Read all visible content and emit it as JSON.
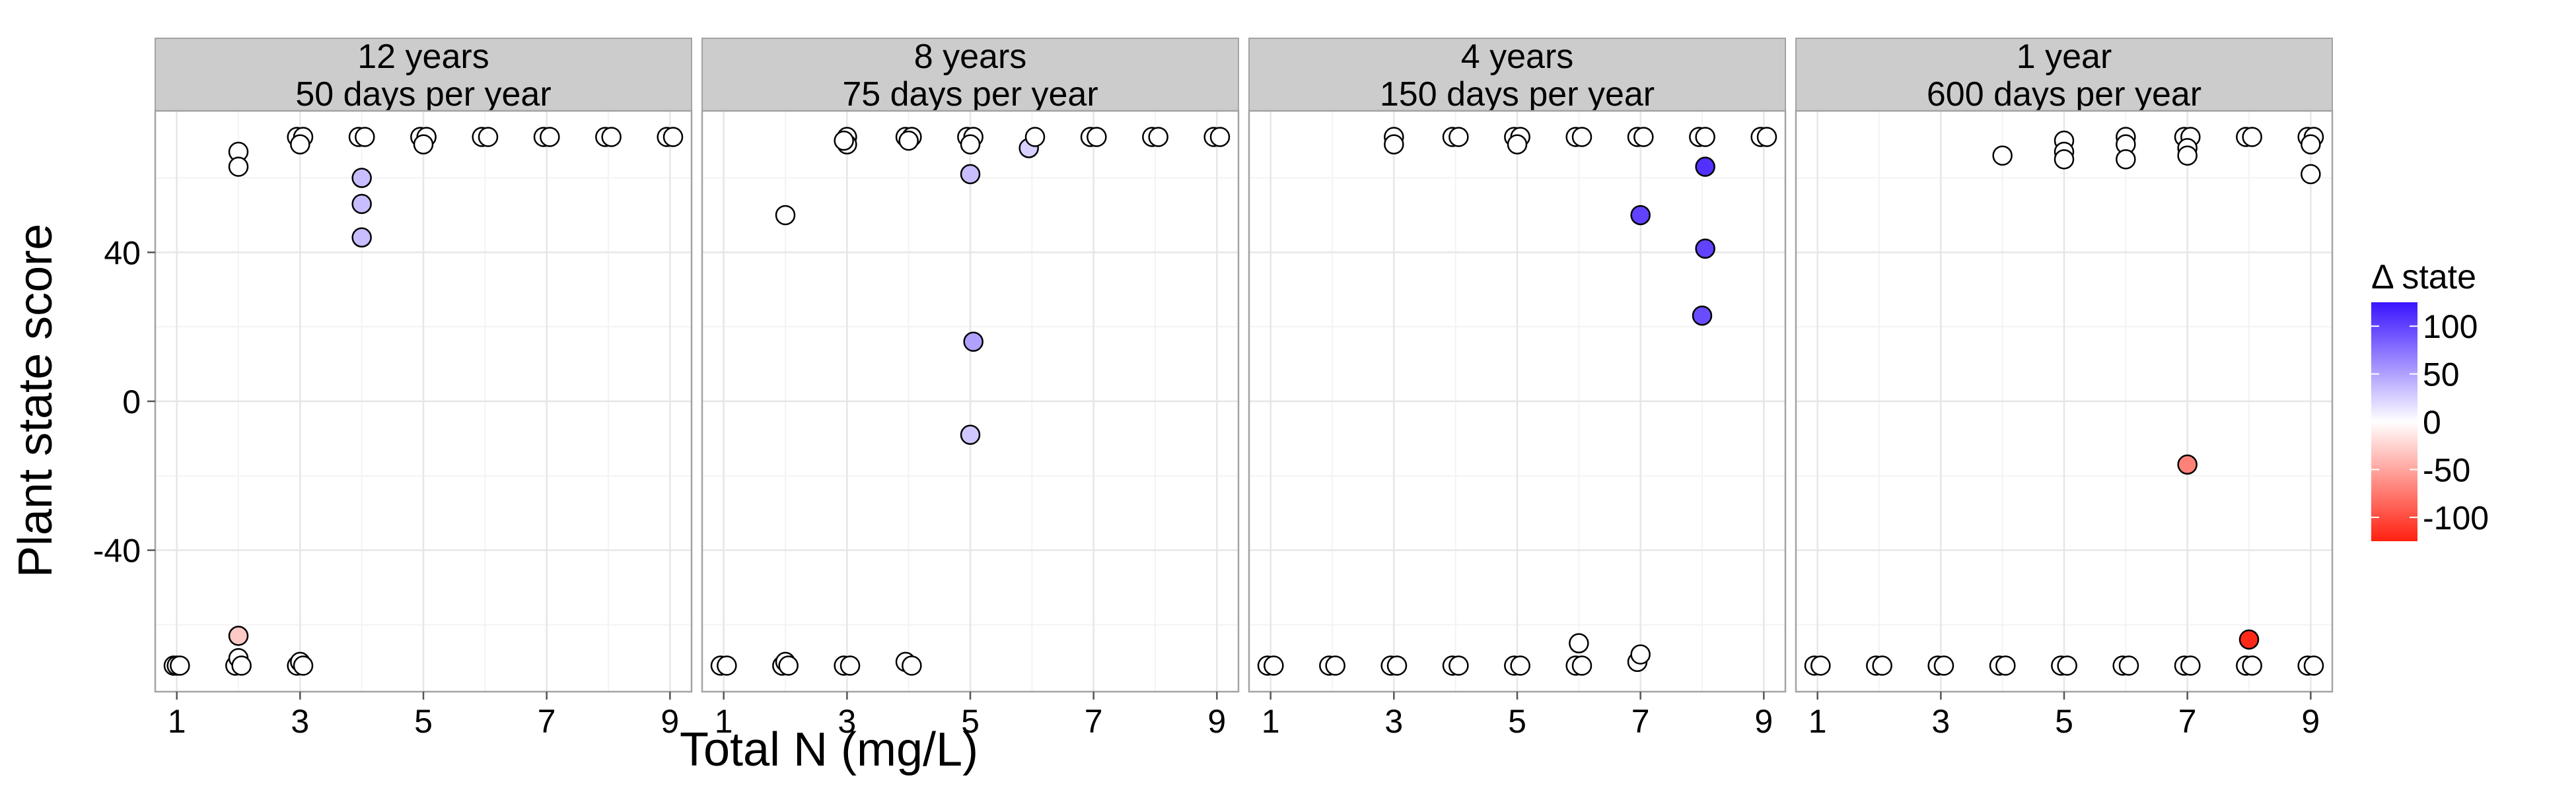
{
  "chart_data": {
    "type": "scatter",
    "xlabel": "Total N (mg/L)",
    "ylabel": "Plant state score",
    "xlim": [
      0.65,
      9.35
    ],
    "ylim": [
      -78,
      78
    ],
    "xticks": [
      1,
      3,
      5,
      7,
      9
    ],
    "xtick_labels": [
      "1",
      "3",
      "5",
      "7",
      "9"
    ],
    "yticks": [
      -40,
      0,
      40
    ],
    "ytick_labels": [
      "-40",
      "0",
      "40"
    ],
    "grid": true,
    "legend": {
      "title": "Δ state",
      "type": "color-gradient",
      "position": "right",
      "low_color": "#ff2010",
      "mid_color": "#ffffff",
      "high_color": "#3a14ff",
      "range": [
        -125,
        125
      ],
      "ticks": [
        100,
        50,
        0,
        -50,
        -100
      ],
      "tick_labels": [
        "100",
        "50",
        "0",
        "-50",
        "-100"
      ]
    },
    "panels": [
      {
        "label_line1": "12 years",
        "label_line2": "50 days per year",
        "points": [
          {
            "x": 0.95,
            "y": -71,
            "d": 0
          },
          {
            "x": 1.0,
            "y": -71,
            "d": 0
          },
          {
            "x": 1.05,
            "y": -71,
            "d": 0
          },
          {
            "x": 1.95,
            "y": -71,
            "d": 0
          },
          {
            "x": 2.0,
            "y": -69,
            "d": 0
          },
          {
            "x": 2.05,
            "y": -71,
            "d": 0
          },
          {
            "x": 2.0,
            "y": -63,
            "d": -30
          },
          {
            "x": 2.0,
            "y": 67,
            "d": 0
          },
          {
            "x": 2.0,
            "y": 63,
            "d": 0
          },
          {
            "x": 2.95,
            "y": -71,
            "d": 0
          },
          {
            "x": 3.0,
            "y": -70,
            "d": 0
          },
          {
            "x": 3.05,
            "y": -71,
            "d": 0
          },
          {
            "x": 2.95,
            "y": 71,
            "d": 0
          },
          {
            "x": 3.05,
            "y": 71,
            "d": 0
          },
          {
            "x": 3.0,
            "y": 69,
            "d": 0
          },
          {
            "x": 3.95,
            "y": 71,
            "d": 0
          },
          {
            "x": 4.05,
            "y": 71,
            "d": 0
          },
          {
            "x": 4.0,
            "y": 60,
            "d": 35
          },
          {
            "x": 4.0,
            "y": 53,
            "d": 35
          },
          {
            "x": 4.0,
            "y": 44,
            "d": 35
          },
          {
            "x": 4.95,
            "y": 71,
            "d": 0
          },
          {
            "x": 5.05,
            "y": 71,
            "d": 0
          },
          {
            "x": 5.0,
            "y": 69,
            "d": 0
          },
          {
            "x": 5.95,
            "y": 71,
            "d": 0
          },
          {
            "x": 6.05,
            "y": 71,
            "d": 0
          },
          {
            "x": 6.95,
            "y": 71,
            "d": 0
          },
          {
            "x": 7.05,
            "y": 71,
            "d": 0
          },
          {
            "x": 7.95,
            "y": 71,
            "d": 0
          },
          {
            "x": 8.05,
            "y": 71,
            "d": 0
          },
          {
            "x": 8.95,
            "y": 71,
            "d": 0
          },
          {
            "x": 9.05,
            "y": 71,
            "d": 0
          }
        ]
      },
      {
        "label_line1": "8 years",
        "label_line2": "75 days per year",
        "points": [
          {
            "x": 0.95,
            "y": -71,
            "d": 0
          },
          {
            "x": 1.05,
            "y": -71,
            "d": 0
          },
          {
            "x": 1.95,
            "y": -71,
            "d": 0
          },
          {
            "x": 2.0,
            "y": -70,
            "d": 0
          },
          {
            "x": 2.05,
            "y": -71,
            "d": 0
          },
          {
            "x": 2.0,
            "y": 50,
            "d": 0
          },
          {
            "x": 2.95,
            "y": -71,
            "d": 0
          },
          {
            "x": 3.05,
            "y": -71,
            "d": 0
          },
          {
            "x": 3.0,
            "y": 71,
            "d": 0
          },
          {
            "x": 3.0,
            "y": 69,
            "d": 0
          },
          {
            "x": 2.95,
            "y": 70,
            "d": 0
          },
          {
            "x": 3.95,
            "y": -70,
            "d": 0
          },
          {
            "x": 4.05,
            "y": -71,
            "d": 0
          },
          {
            "x": 3.95,
            "y": 71,
            "d": 0
          },
          {
            "x": 4.05,
            "y": 71,
            "d": 0
          },
          {
            "x": 4.0,
            "y": 70,
            "d": 0
          },
          {
            "x": 4.95,
            "y": 71,
            "d": 0
          },
          {
            "x": 5.05,
            "y": 71,
            "d": 0
          },
          {
            "x": 5.0,
            "y": 69,
            "d": 0
          },
          {
            "x": 5.0,
            "y": 61,
            "d": 35
          },
          {
            "x": 5.05,
            "y": 16,
            "d": 50
          },
          {
            "x": 5.0,
            "y": -9,
            "d": 30
          },
          {
            "x": 5.95,
            "y": 68,
            "d": 25
          },
          {
            "x": 6.05,
            "y": 71,
            "d": 0
          },
          {
            "x": 6.95,
            "y": 71,
            "d": 0
          },
          {
            "x": 7.05,
            "y": 71,
            "d": 0
          },
          {
            "x": 7.95,
            "y": 71,
            "d": 0
          },
          {
            "x": 8.05,
            "y": 71,
            "d": 0
          },
          {
            "x": 8.95,
            "y": 71,
            "d": 0
          },
          {
            "x": 9.05,
            "y": 71,
            "d": 0
          }
        ]
      },
      {
        "label_line1": "4 years",
        "label_line2": "150 days per year",
        "points": [
          {
            "x": 0.95,
            "y": -71,
            "d": 0
          },
          {
            "x": 1.05,
            "y": -71,
            "d": 0
          },
          {
            "x": 1.95,
            "y": -71,
            "d": 0
          },
          {
            "x": 2.05,
            "y": -71,
            "d": 0
          },
          {
            "x": 2.95,
            "y": -71,
            "d": 0
          },
          {
            "x": 3.05,
            "y": -71,
            "d": 0
          },
          {
            "x": 3.0,
            "y": 71,
            "d": 0
          },
          {
            "x": 3.0,
            "y": 69,
            "d": 0
          },
          {
            "x": 3.95,
            "y": -71,
            "d": 0
          },
          {
            "x": 4.05,
            "y": -71,
            "d": 0
          },
          {
            "x": 3.95,
            "y": 71,
            "d": 0
          },
          {
            "x": 4.05,
            "y": 71,
            "d": 0
          },
          {
            "x": 4.95,
            "y": -71,
            "d": 0
          },
          {
            "x": 5.05,
            "y": -71,
            "d": 0
          },
          {
            "x": 4.95,
            "y": 71,
            "d": 0
          },
          {
            "x": 5.05,
            "y": 71,
            "d": 0
          },
          {
            "x": 5.0,
            "y": 69,
            "d": 0
          },
          {
            "x": 5.95,
            "y": -71,
            "d": 0
          },
          {
            "x": 6.05,
            "y": -71,
            "d": 0
          },
          {
            "x": 6.0,
            "y": -65,
            "d": 0
          },
          {
            "x": 5.95,
            "y": 71,
            "d": 0
          },
          {
            "x": 6.05,
            "y": 71,
            "d": 0
          },
          {
            "x": 6.95,
            "y": -70,
            "d": 0
          },
          {
            "x": 7.0,
            "y": -68,
            "d": 0
          },
          {
            "x": 6.95,
            "y": 71,
            "d": 0
          },
          {
            "x": 7.05,
            "y": 71,
            "d": 0
          },
          {
            "x": 7.0,
            "y": 50,
            "d": 100
          },
          {
            "x": 7.95,
            "y": 71,
            "d": 0
          },
          {
            "x": 8.05,
            "y": 71,
            "d": 0
          },
          {
            "x": 8.05,
            "y": 63,
            "d": 110
          },
          {
            "x": 8.05,
            "y": 41,
            "d": 100
          },
          {
            "x": 8.0,
            "y": 23,
            "d": 95
          },
          {
            "x": 8.95,
            "y": 71,
            "d": 0
          },
          {
            "x": 9.05,
            "y": 71,
            "d": 0
          }
        ]
      },
      {
        "label_line1": "1 year",
        "label_line2": "600 days per year",
        "points": [
          {
            "x": 0.95,
            "y": -71,
            "d": 0
          },
          {
            "x": 1.05,
            "y": -71,
            "d": 0
          },
          {
            "x": 1.95,
            "y": -71,
            "d": 0
          },
          {
            "x": 2.05,
            "y": -71,
            "d": 0
          },
          {
            "x": 2.95,
            "y": -71,
            "d": 0
          },
          {
            "x": 3.05,
            "y": -71,
            "d": 0
          },
          {
            "x": 3.95,
            "y": -71,
            "d": 0
          },
          {
            "x": 4.05,
            "y": -71,
            "d": 0
          },
          {
            "x": 4.0,
            "y": 66,
            "d": 0
          },
          {
            "x": 4.95,
            "y": -71,
            "d": 0
          },
          {
            "x": 5.05,
            "y": -71,
            "d": 0
          },
          {
            "x": 5.0,
            "y": 70,
            "d": 0
          },
          {
            "x": 5.0,
            "y": 67,
            "d": 0
          },
          {
            "x": 5.0,
            "y": 65,
            "d": 0
          },
          {
            "x": 5.95,
            "y": -71,
            "d": 0
          },
          {
            "x": 6.05,
            "y": -71,
            "d": 0
          },
          {
            "x": 6.0,
            "y": 71,
            "d": 0
          },
          {
            "x": 6.0,
            "y": 69,
            "d": 0
          },
          {
            "x": 6.0,
            "y": 65,
            "d": 0
          },
          {
            "x": 6.95,
            "y": -71,
            "d": 0
          },
          {
            "x": 7.05,
            "y": -71,
            "d": 0
          },
          {
            "x": 6.95,
            "y": 71,
            "d": 0
          },
          {
            "x": 7.05,
            "y": 71,
            "d": 0
          },
          {
            "x": 7.0,
            "y": 68,
            "d": 0
          },
          {
            "x": 7.0,
            "y": 66,
            "d": 0
          },
          {
            "x": 7.0,
            "y": -17,
            "d": -70
          },
          {
            "x": 7.95,
            "y": -71,
            "d": 0
          },
          {
            "x": 8.05,
            "y": -71,
            "d": 0
          },
          {
            "x": 7.95,
            "y": 71,
            "d": 0
          },
          {
            "x": 8.05,
            "y": 71,
            "d": 0
          },
          {
            "x": 8.0,
            "y": -64,
            "d": -120
          },
          {
            "x": 8.95,
            "y": -71,
            "d": 0
          },
          {
            "x": 9.05,
            "y": -71,
            "d": 0
          },
          {
            "x": 8.95,
            "y": 71,
            "d": 0
          },
          {
            "x": 9.05,
            "y": 71,
            "d": 0
          },
          {
            "x": 9.0,
            "y": 69,
            "d": 0
          },
          {
            "x": 9.0,
            "y": 61,
            "d": 0
          }
        ]
      }
    ]
  }
}
